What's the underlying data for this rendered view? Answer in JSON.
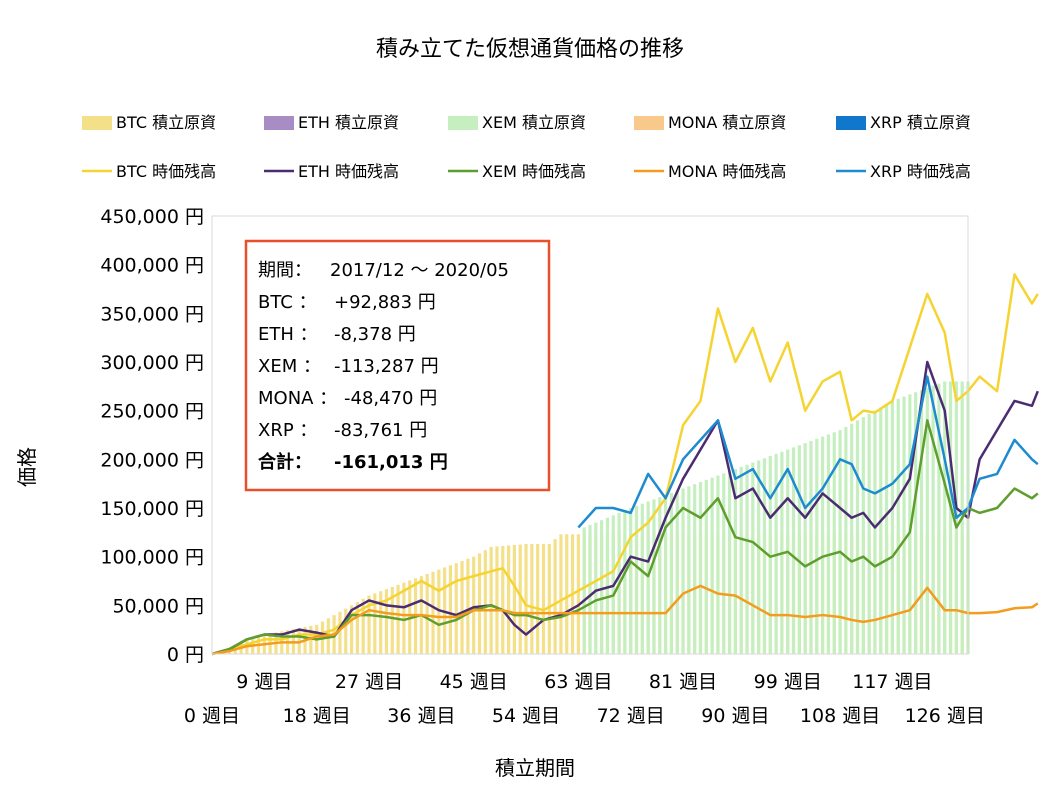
{
  "chart_data": {
    "type": "bar+line",
    "title": "積み立てた仮想通貨価格の推移",
    "xlabel": "積立期間",
    "ylabel": "価格",
    "ylim": [
      0,
      450000
    ],
    "y_ticks": [
      0,
      50000,
      100000,
      150000,
      200000,
      250000,
      300000,
      350000,
      400000,
      450000
    ],
    "y_tick_labels": [
      "0 円",
      "50,000 円",
      "100,000 円",
      "150,000 円",
      "200,000 円",
      "250,000 円",
      "300,000 円",
      "350,000 円",
      "400,000 円",
      "450,000 円"
    ],
    "x_range": [
      0,
      130
    ],
    "x_ticks_row1": [
      9,
      27,
      45,
      63,
      81,
      99,
      117
    ],
    "x_ticks_row2": [
      0,
      18,
      36,
      54,
      72,
      90,
      108,
      126
    ],
    "x_tick_suffix": " 週目",
    "grid": false,
    "legend_position": "top",
    "bar_series": [
      {
        "name": "BTC  積立原資",
        "color": "#F5E08A",
        "points": [
          [
            0,
            0
          ],
          [
            9,
            20000
          ],
          [
            18,
            30000
          ],
          [
            27,
            60000
          ],
          [
            36,
            80000
          ],
          [
            45,
            100000
          ],
          [
            48,
            110000
          ],
          [
            54,
            113000
          ],
          [
            58,
            113000
          ],
          [
            60,
            123000
          ],
          [
            63,
            123000
          ],
          [
            130,
            123000
          ]
        ]
      },
      {
        "name": "ETH  積立原資",
        "color": "#A88CC4",
        "points": [
          [
            0,
            0
          ],
          [
            130,
            0
          ]
        ]
      },
      {
        "name": "XEM  積立原資",
        "color": "#C6EFC0",
        "points": [
          [
            0,
            0
          ],
          [
            63,
            0
          ],
          [
            64,
            130000
          ],
          [
            72,
            150000
          ],
          [
            81,
            170000
          ],
          [
            90,
            190000
          ],
          [
            99,
            210000
          ],
          [
            108,
            230000
          ],
          [
            117,
            260000
          ],
          [
            126,
            280000
          ],
          [
            130,
            280000
          ]
        ]
      },
      {
        "name": "MONA  積立原資",
        "color": "#F8C98A",
        "points": [
          [
            0,
            0
          ],
          [
            130,
            0
          ]
        ]
      },
      {
        "name": "XRP  積立原資",
        "color": "#1177CC",
        "points": [
          [
            0,
            0
          ],
          [
            130,
            0
          ]
        ]
      }
    ],
    "line_series": [
      {
        "name": "BTC  時価残高",
        "color": "#F5D432",
        "points": [
          [
            0,
            0
          ],
          [
            3,
            5000
          ],
          [
            6,
            10000
          ],
          [
            9,
            15000
          ],
          [
            12,
            15000
          ],
          [
            15,
            20000
          ],
          [
            18,
            20000
          ],
          [
            21,
            25000
          ],
          [
            24,
            40000
          ],
          [
            27,
            50000
          ],
          [
            30,
            55000
          ],
          [
            33,
            65000
          ],
          [
            36,
            75000
          ],
          [
            39,
            65000
          ],
          [
            42,
            75000
          ],
          [
            45,
            80000
          ],
          [
            48,
            85000
          ],
          [
            50,
            88000
          ],
          [
            52,
            70000
          ],
          [
            54,
            50000
          ],
          [
            57,
            45000
          ],
          [
            60,
            55000
          ],
          [
            63,
            65000
          ],
          [
            66,
            75000
          ],
          [
            69,
            85000
          ],
          [
            72,
            120000
          ],
          [
            75,
            135000
          ],
          [
            78,
            160000
          ],
          [
            81,
            235000
          ],
          [
            84,
            260000
          ],
          [
            87,
            355000
          ],
          [
            90,
            300000
          ],
          [
            93,
            335000
          ],
          [
            96,
            280000
          ],
          [
            99,
            320000
          ],
          [
            102,
            250000
          ],
          [
            105,
            280000
          ],
          [
            108,
            290000
          ],
          [
            110,
            240000
          ],
          [
            112,
            250000
          ],
          [
            114,
            248000
          ],
          [
            117,
            260000
          ],
          [
            120,
            315000
          ],
          [
            123,
            370000
          ],
          [
            126,
            330000
          ],
          [
            128,
            260000
          ],
          [
            130,
            270000
          ],
          [
            132,
            285000
          ],
          [
            135,
            270000
          ],
          [
            138,
            390000
          ],
          [
            141,
            360000
          ],
          [
            142,
            370000
          ]
        ]
      },
      {
        "name": "ETH  時価残高",
        "color": "#4B2C72",
        "points": [
          [
            0,
            0
          ],
          [
            3,
            5000
          ],
          [
            6,
            15000
          ],
          [
            9,
            20000
          ],
          [
            12,
            20000
          ],
          [
            15,
            25000
          ],
          [
            18,
            22000
          ],
          [
            21,
            18000
          ],
          [
            24,
            45000
          ],
          [
            27,
            55000
          ],
          [
            30,
            50000
          ],
          [
            33,
            48000
          ],
          [
            36,
            55000
          ],
          [
            39,
            45000
          ],
          [
            42,
            40000
          ],
          [
            45,
            48000
          ],
          [
            48,
            50000
          ],
          [
            50,
            45000
          ],
          [
            52,
            30000
          ],
          [
            54,
            20000
          ],
          [
            57,
            35000
          ],
          [
            60,
            40000
          ],
          [
            63,
            50000
          ],
          [
            66,
            65000
          ],
          [
            69,
            70000
          ],
          [
            72,
            100000
          ],
          [
            75,
            95000
          ],
          [
            78,
            140000
          ],
          [
            81,
            180000
          ],
          [
            84,
            210000
          ],
          [
            87,
            240000
          ],
          [
            90,
            160000
          ],
          [
            93,
            170000
          ],
          [
            96,
            140000
          ],
          [
            99,
            160000
          ],
          [
            102,
            140000
          ],
          [
            105,
            165000
          ],
          [
            108,
            150000
          ],
          [
            110,
            140000
          ],
          [
            112,
            145000
          ],
          [
            114,
            130000
          ],
          [
            117,
            150000
          ],
          [
            120,
            180000
          ],
          [
            123,
            300000
          ],
          [
            126,
            250000
          ],
          [
            128,
            150000
          ],
          [
            130,
            140000
          ],
          [
            132,
            200000
          ],
          [
            135,
            230000
          ],
          [
            138,
            260000
          ],
          [
            141,
            255000
          ],
          [
            142,
            270000
          ]
        ]
      },
      {
        "name": "XEM  時価残高",
        "color": "#5E9E2E",
        "points": [
          [
            0,
            0
          ],
          [
            3,
            5000
          ],
          [
            6,
            15000
          ],
          [
            9,
            20000
          ],
          [
            12,
            18000
          ],
          [
            15,
            18000
          ],
          [
            18,
            15000
          ],
          [
            21,
            18000
          ],
          [
            24,
            40000
          ],
          [
            27,
            40000
          ],
          [
            30,
            38000
          ],
          [
            33,
            35000
          ],
          [
            36,
            40000
          ],
          [
            39,
            30000
          ],
          [
            42,
            35000
          ],
          [
            45,
            45000
          ],
          [
            48,
            50000
          ],
          [
            50,
            45000
          ],
          [
            52,
            40000
          ],
          [
            54,
            40000
          ],
          [
            57,
            35000
          ],
          [
            60,
            38000
          ],
          [
            63,
            45000
          ],
          [
            66,
            55000
          ],
          [
            69,
            60000
          ],
          [
            72,
            95000
          ],
          [
            75,
            80000
          ],
          [
            78,
            130000
          ],
          [
            81,
            150000
          ],
          [
            84,
            140000
          ],
          [
            87,
            160000
          ],
          [
            90,
            120000
          ],
          [
            93,
            115000
          ],
          [
            96,
            100000
          ],
          [
            99,
            105000
          ],
          [
            102,
            90000
          ],
          [
            105,
            100000
          ],
          [
            108,
            105000
          ],
          [
            110,
            95000
          ],
          [
            112,
            100000
          ],
          [
            114,
            90000
          ],
          [
            117,
            100000
          ],
          [
            120,
            125000
          ],
          [
            123,
            240000
          ],
          [
            126,
            175000
          ],
          [
            128,
            130000
          ],
          [
            130,
            150000
          ],
          [
            132,
            145000
          ],
          [
            135,
            150000
          ],
          [
            138,
            170000
          ],
          [
            141,
            160000
          ],
          [
            142,
            165000
          ]
        ]
      },
      {
        "name": "MONA  時価残高",
        "color": "#F39C1E",
        "points": [
          [
            0,
            0
          ],
          [
            3,
            3000
          ],
          [
            6,
            8000
          ],
          [
            9,
            10000
          ],
          [
            12,
            12000
          ],
          [
            15,
            12000
          ],
          [
            18,
            18000
          ],
          [
            21,
            20000
          ],
          [
            24,
            35000
          ],
          [
            27,
            45000
          ],
          [
            30,
            42000
          ],
          [
            33,
            40000
          ],
          [
            36,
            40000
          ],
          [
            39,
            38000
          ],
          [
            42,
            38000
          ],
          [
            45,
            45000
          ],
          [
            48,
            45000
          ],
          [
            50,
            45000
          ],
          [
            52,
            42000
          ],
          [
            54,
            42000
          ],
          [
            57,
            42000
          ],
          [
            60,
            42000
          ],
          [
            63,
            42000
          ],
          [
            66,
            42000
          ],
          [
            69,
            42000
          ],
          [
            72,
            42000
          ],
          [
            75,
            42000
          ],
          [
            78,
            42000
          ],
          [
            81,
            62000
          ],
          [
            84,
            70000
          ],
          [
            87,
            62000
          ],
          [
            90,
            60000
          ],
          [
            93,
            50000
          ],
          [
            96,
            40000
          ],
          [
            99,
            40000
          ],
          [
            102,
            38000
          ],
          [
            105,
            40000
          ],
          [
            108,
            38000
          ],
          [
            110,
            35000
          ],
          [
            112,
            33000
          ],
          [
            114,
            35000
          ],
          [
            117,
            40000
          ],
          [
            120,
            45000
          ],
          [
            123,
            68000
          ],
          [
            126,
            45000
          ],
          [
            128,
            45000
          ],
          [
            130,
            42000
          ],
          [
            132,
            42000
          ],
          [
            135,
            43000
          ],
          [
            138,
            47000
          ],
          [
            141,
            48000
          ],
          [
            142,
            52000
          ]
        ]
      },
      {
        "name": "XRP  時価残高",
        "color": "#1E8BD0",
        "points": [
          [
            63,
            130000
          ],
          [
            66,
            150000
          ],
          [
            69,
            150000
          ],
          [
            72,
            145000
          ],
          [
            75,
            185000
          ],
          [
            78,
            160000
          ],
          [
            81,
            200000
          ],
          [
            84,
            220000
          ],
          [
            87,
            240000
          ],
          [
            90,
            180000
          ],
          [
            93,
            190000
          ],
          [
            96,
            160000
          ],
          [
            99,
            190000
          ],
          [
            102,
            150000
          ],
          [
            105,
            170000
          ],
          [
            108,
            200000
          ],
          [
            110,
            195000
          ],
          [
            112,
            170000
          ],
          [
            114,
            165000
          ],
          [
            117,
            175000
          ],
          [
            120,
            195000
          ],
          [
            123,
            285000
          ],
          [
            126,
            200000
          ],
          [
            128,
            140000
          ],
          [
            130,
            150000
          ],
          [
            132,
            180000
          ],
          [
            135,
            185000
          ],
          [
            138,
            220000
          ],
          [
            141,
            200000
          ],
          [
            142,
            195000
          ]
        ]
      }
    ],
    "annotation": {
      "lines": [
        {
          "label": "期間：",
          "value": "2017/12 〜 2020/05",
          "bold": false
        },
        {
          "label": "BTC ：",
          "value": "+92,883 円",
          "bold": false
        },
        {
          "label": "ETH ：",
          "value": "-8,378 円",
          "bold": false
        },
        {
          "label": "XEM ：",
          "value": "-113,287 円",
          "bold": false
        },
        {
          "label": "MONA ：",
          "value": "-48,470 円",
          "bold": false
        },
        {
          "label": "XRP ：",
          "value": "-83,761 円",
          "bold": false
        },
        {
          "label": "合計：",
          "value": "-161,013 円",
          "bold": true
        }
      ],
      "border_color": "#E8502A"
    }
  }
}
